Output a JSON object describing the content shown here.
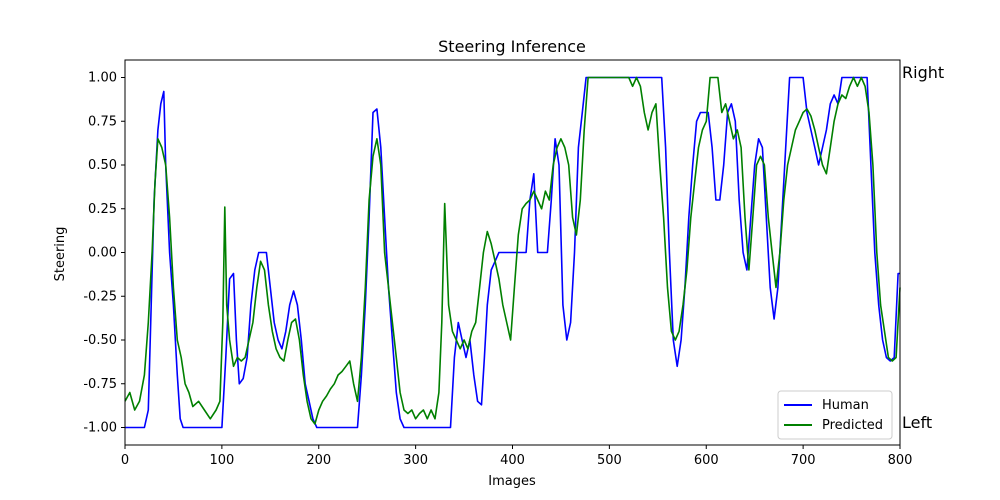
{
  "chart_data": {
    "type": "line",
    "title": "Steering Inference",
    "xlabel": "Images",
    "ylabel": "Steering",
    "xlim": [
      0,
      800
    ],
    "ylim": [
      -1.1,
      1.1
    ],
    "xticks": [
      0,
      100,
      200,
      300,
      400,
      500,
      600,
      700,
      800
    ],
    "yticks": [
      -1.0,
      -0.75,
      -0.5,
      -0.25,
      0.0,
      0.25,
      0.5,
      0.75,
      1.0
    ],
    "annotations": {
      "top": "Right",
      "bottom": "Left"
    },
    "legend_position": "bottom-right",
    "series": [
      {
        "name": "Human",
        "color": "#0000ff",
        "points": [
          [
            0,
            -1
          ],
          [
            20,
            -1
          ],
          [
            24,
            -0.9
          ],
          [
            27,
            -0.3
          ],
          [
            30,
            0.3
          ],
          [
            34,
            0.7
          ],
          [
            37,
            0.85
          ],
          [
            40,
            0.92
          ],
          [
            42,
            0.5
          ],
          [
            46,
            0
          ],
          [
            50,
            -0.3
          ],
          [
            54,
            -0.7
          ],
          [
            57,
            -0.95
          ],
          [
            60,
            -1
          ],
          [
            100,
            -1
          ],
          [
            104,
            -0.6
          ],
          [
            108,
            -0.15
          ],
          [
            112,
            -0.12
          ],
          [
            115,
            -0.5
          ],
          [
            118,
            -0.75
          ],
          [
            122,
            -0.72
          ],
          [
            126,
            -0.6
          ],
          [
            130,
            -0.3
          ],
          [
            134,
            -0.1
          ],
          [
            138,
            0
          ],
          [
            146,
            0
          ],
          [
            150,
            -0.2
          ],
          [
            154,
            -0.4
          ],
          [
            158,
            -0.5
          ],
          [
            162,
            -0.55
          ],
          [
            166,
            -0.45
          ],
          [
            170,
            -0.3
          ],
          [
            174,
            -0.22
          ],
          [
            178,
            -0.3
          ],
          [
            182,
            -0.5
          ],
          [
            186,
            -0.75
          ],
          [
            190,
            -0.85
          ],
          [
            194,
            -0.95
          ],
          [
            198,
            -1
          ],
          [
            240,
            -1
          ],
          [
            244,
            -0.7
          ],
          [
            248,
            -0.3
          ],
          [
            252,
            0.2
          ],
          [
            256,
            0.8
          ],
          [
            260,
            0.82
          ],
          [
            264,
            0.6
          ],
          [
            268,
            0.2
          ],
          [
            272,
            -0.2
          ],
          [
            276,
            -0.5
          ],
          [
            280,
            -0.8
          ],
          [
            284,
            -0.95
          ],
          [
            288,
            -1
          ],
          [
            336,
            -1
          ],
          [
            340,
            -0.6
          ],
          [
            344,
            -0.4
          ],
          [
            348,
            -0.5
          ],
          [
            352,
            -0.6
          ],
          [
            356,
            -0.5
          ],
          [
            360,
            -0.7
          ],
          [
            364,
            -0.85
          ],
          [
            368,
            -0.87
          ],
          [
            371,
            -0.6
          ],
          [
            374,
            -0.3
          ],
          [
            378,
            -0.1
          ],
          [
            382,
            -0.05
          ],
          [
            386,
            0
          ],
          [
            414,
            0
          ],
          [
            418,
            0.3
          ],
          [
            422,
            0.45
          ],
          [
            426,
            0
          ],
          [
            436,
            0
          ],
          [
            440,
            0.3
          ],
          [
            444,
            0.65
          ],
          [
            448,
            0.5
          ],
          [
            452,
            -0.3
          ],
          [
            456,
            -0.5
          ],
          [
            460,
            -0.4
          ],
          [
            464,
            0
          ],
          [
            468,
            0.6
          ],
          [
            472,
            0.8
          ],
          [
            476,
            1
          ],
          [
            554,
            1
          ],
          [
            558,
            0.6
          ],
          [
            562,
            0
          ],
          [
            566,
            -0.5
          ],
          [
            570,
            -0.65
          ],
          [
            574,
            -0.5
          ],
          [
            578,
            -0.2
          ],
          [
            582,
            0.2
          ],
          [
            586,
            0.5
          ],
          [
            590,
            0.75
          ],
          [
            594,
            0.8
          ],
          [
            598,
            0.8
          ],
          [
            602,
            0.8
          ],
          [
            606,
            0.6
          ],
          [
            610,
            0.3
          ],
          [
            614,
            0.3
          ],
          [
            618,
            0.5
          ],
          [
            622,
            0.8
          ],
          [
            626,
            0.85
          ],
          [
            630,
            0.75
          ],
          [
            634,
            0.3
          ],
          [
            638,
            0
          ],
          [
            642,
            -0.1
          ],
          [
            646,
            0.2
          ],
          [
            650,
            0.5
          ],
          [
            654,
            0.65
          ],
          [
            658,
            0.6
          ],
          [
            662,
            0.2
          ],
          [
            666,
            -0.2
          ],
          [
            670,
            -0.38
          ],
          [
            674,
            -0.2
          ],
          [
            678,
            0.2
          ],
          [
            682,
            0.6
          ],
          [
            686,
            1
          ],
          [
            700,
            1
          ],
          [
            704,
            0.8
          ],
          [
            708,
            0.7
          ],
          [
            712,
            0.6
          ],
          [
            716,
            0.5
          ],
          [
            720,
            0.6
          ],
          [
            724,
            0.7
          ],
          [
            728,
            0.85
          ],
          [
            732,
            0.9
          ],
          [
            736,
            0.85
          ],
          [
            740,
            1
          ],
          [
            750,
            1
          ],
          [
            760,
            1
          ],
          [
            766,
            1
          ],
          [
            770,
            0.5
          ],
          [
            774,
            0
          ],
          [
            778,
            -0.3
          ],
          [
            782,
            -0.5
          ],
          [
            786,
            -0.6
          ],
          [
            790,
            -0.62
          ],
          [
            794,
            -0.6
          ],
          [
            798,
            -0.12
          ],
          [
            800,
            -0.12
          ]
        ]
      },
      {
        "name": "Predicted",
        "color": "#008000",
        "points": [
          [
            0,
            -0.85
          ],
          [
            5,
            -0.8
          ],
          [
            10,
            -0.9
          ],
          [
            15,
            -0.85
          ],
          [
            20,
            -0.7
          ],
          [
            24,
            -0.4
          ],
          [
            28,
            0
          ],
          [
            31,
            0.4
          ],
          [
            34,
            0.65
          ],
          [
            38,
            0.6
          ],
          [
            42,
            0.5
          ],
          [
            46,
            0.2
          ],
          [
            50,
            -0.2
          ],
          [
            54,
            -0.5
          ],
          [
            58,
            -0.6
          ],
          [
            62,
            -0.75
          ],
          [
            66,
            -0.8
          ],
          [
            70,
            -0.88
          ],
          [
            76,
            -0.85
          ],
          [
            82,
            -0.9
          ],
          [
            88,
            -0.95
          ],
          [
            94,
            -0.9
          ],
          [
            98,
            -0.85
          ],
          [
            101,
            -0.4
          ],
          [
            103,
            0.26
          ],
          [
            105,
            -0.3
          ],
          [
            108,
            -0.5
          ],
          [
            112,
            -0.65
          ],
          [
            116,
            -0.6
          ],
          [
            120,
            -0.62
          ],
          [
            124,
            -0.6
          ],
          [
            128,
            -0.5
          ],
          [
            132,
            -0.4
          ],
          [
            136,
            -0.2
          ],
          [
            140,
            -0.05
          ],
          [
            144,
            -0.1
          ],
          [
            148,
            -0.3
          ],
          [
            152,
            -0.45
          ],
          [
            156,
            -0.55
          ],
          [
            160,
            -0.6
          ],
          [
            164,
            -0.62
          ],
          [
            168,
            -0.5
          ],
          [
            172,
            -0.4
          ],
          [
            176,
            -0.38
          ],
          [
            180,
            -0.5
          ],
          [
            184,
            -0.7
          ],
          [
            188,
            -0.85
          ],
          [
            192,
            -0.95
          ],
          [
            196,
            -0.98
          ],
          [
            200,
            -0.9
          ],
          [
            204,
            -0.85
          ],
          [
            208,
            -0.82
          ],
          [
            212,
            -0.78
          ],
          [
            216,
            -0.75
          ],
          [
            220,
            -0.7
          ],
          [
            224,
            -0.68
          ],
          [
            228,
            -0.65
          ],
          [
            232,
            -0.62
          ],
          [
            236,
            -0.75
          ],
          [
            240,
            -0.85
          ],
          [
            244,
            -0.6
          ],
          [
            248,
            -0.2
          ],
          [
            252,
            0.3
          ],
          [
            256,
            0.55
          ],
          [
            260,
            0.65
          ],
          [
            264,
            0.5
          ],
          [
            268,
            0
          ],
          [
            272,
            -0.2
          ],
          [
            276,
            -0.4
          ],
          [
            280,
            -0.6
          ],
          [
            284,
            -0.8
          ],
          [
            288,
            -0.9
          ],
          [
            292,
            -0.92
          ],
          [
            296,
            -0.9
          ],
          [
            300,
            -0.95
          ],
          [
            304,
            -0.92
          ],
          [
            308,
            -0.9
          ],
          [
            312,
            -0.95
          ],
          [
            316,
            -0.9
          ],
          [
            320,
            -0.95
          ],
          [
            324,
            -0.8
          ],
          [
            327,
            -0.4
          ],
          [
            330,
            0.28
          ],
          [
            334,
            -0.3
          ],
          [
            338,
            -0.45
          ],
          [
            342,
            -0.5
          ],
          [
            346,
            -0.55
          ],
          [
            350,
            -0.5
          ],
          [
            354,
            -0.55
          ],
          [
            358,
            -0.45
          ],
          [
            362,
            -0.4
          ],
          [
            366,
            -0.2
          ],
          [
            370,
            0
          ],
          [
            374,
            0.12
          ],
          [
            378,
            0.05
          ],
          [
            382,
            -0.05
          ],
          [
            386,
            -0.15
          ],
          [
            390,
            -0.3
          ],
          [
            394,
            -0.4
          ],
          [
            398,
            -0.5
          ],
          [
            402,
            -0.2
          ],
          [
            406,
            0.1
          ],
          [
            410,
            0.25
          ],
          [
            414,
            0.28
          ],
          [
            418,
            0.3
          ],
          [
            422,
            0.35
          ],
          [
            426,
            0.3
          ],
          [
            430,
            0.25
          ],
          [
            434,
            0.35
          ],
          [
            438,
            0.3
          ],
          [
            442,
            0.5
          ],
          [
            446,
            0.6
          ],
          [
            450,
            0.65
          ],
          [
            454,
            0.6
          ],
          [
            458,
            0.5
          ],
          [
            462,
            0.2
          ],
          [
            466,
            0.1
          ],
          [
            470,
            0.3
          ],
          [
            474,
            0.7
          ],
          [
            478,
            1
          ],
          [
            520,
            1
          ],
          [
            524,
            0.95
          ],
          [
            528,
            1
          ],
          [
            532,
            0.95
          ],
          [
            536,
            0.8
          ],
          [
            540,
            0.7
          ],
          [
            544,
            0.8
          ],
          [
            548,
            0.85
          ],
          [
            552,
            0.5
          ],
          [
            556,
            0.2
          ],
          [
            560,
            -0.2
          ],
          [
            564,
            -0.45
          ],
          [
            568,
            -0.5
          ],
          [
            572,
            -0.45
          ],
          [
            576,
            -0.3
          ],
          [
            580,
            -0.1
          ],
          [
            584,
            0.2
          ],
          [
            588,
            0.4
          ],
          [
            592,
            0.6
          ],
          [
            596,
            0.7
          ],
          [
            600,
            0.75
          ],
          [
            604,
            1
          ],
          [
            612,
            1
          ],
          [
            616,
            0.8
          ],
          [
            620,
            0.85
          ],
          [
            624,
            0.75
          ],
          [
            628,
            0.65
          ],
          [
            632,
            0.7
          ],
          [
            636,
            0.6
          ],
          [
            640,
            0.2
          ],
          [
            644,
            -0.1
          ],
          [
            648,
            0.2
          ],
          [
            652,
            0.5
          ],
          [
            656,
            0.55
          ],
          [
            660,
            0.5
          ],
          [
            664,
            0.2
          ],
          [
            668,
            0
          ],
          [
            672,
            -0.2
          ],
          [
            676,
            0
          ],
          [
            680,
            0.3
          ],
          [
            684,
            0.5
          ],
          [
            688,
            0.6
          ],
          [
            692,
            0.7
          ],
          [
            696,
            0.75
          ],
          [
            700,
            0.8
          ],
          [
            704,
            0.82
          ],
          [
            708,
            0.78
          ],
          [
            712,
            0.7
          ],
          [
            716,
            0.6
          ],
          [
            720,
            0.5
          ],
          [
            724,
            0.45
          ],
          [
            728,
            0.6
          ],
          [
            732,
            0.75
          ],
          [
            736,
            0.85
          ],
          [
            740,
            0.9
          ],
          [
            744,
            0.88
          ],
          [
            748,
            0.95
          ],
          [
            752,
            1
          ],
          [
            756,
            0.95
          ],
          [
            760,
            1
          ],
          [
            764,
            0.95
          ],
          [
            768,
            0.8
          ],
          [
            772,
            0.5
          ],
          [
            776,
            0
          ],
          [
            780,
            -0.3
          ],
          [
            784,
            -0.45
          ],
          [
            788,
            -0.6
          ],
          [
            792,
            -0.62
          ],
          [
            796,
            -0.6
          ],
          [
            800,
            -0.2
          ]
        ]
      }
    ]
  }
}
